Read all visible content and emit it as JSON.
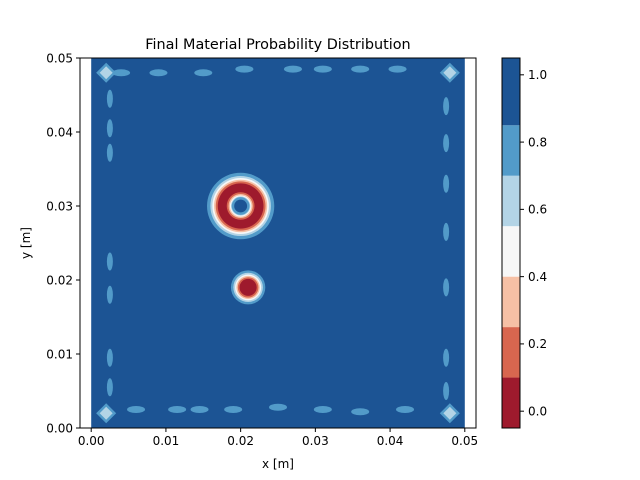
{
  "chart_data": {
    "type": "contourf",
    "title": "Final Material Probability Distribution",
    "xlabel": "x [m]",
    "ylabel": "y [m]",
    "xlim": [
      -0.0015,
      0.0515
    ],
    "ylim": [
      0.0,
      0.05
    ],
    "domain": {
      "x": [
        0.0,
        0.05
      ],
      "y": [
        0.0,
        0.05
      ]
    },
    "x_ticks": [
      0.0,
      0.01,
      0.02,
      0.03,
      0.04,
      0.05
    ],
    "x_tick_labels": [
      "0.00",
      "0.01",
      "0.02",
      "0.03",
      "0.04",
      "0.05"
    ],
    "y_ticks": [
      0.0,
      0.01,
      0.02,
      0.03,
      0.04,
      0.05
    ],
    "y_tick_labels": [
      "0.00",
      "0.01",
      "0.02",
      "0.03",
      "0.04",
      "0.05"
    ],
    "levels": [
      -0.05,
      0.1,
      0.25,
      0.4,
      0.55,
      0.7,
      0.85,
      1.05
    ],
    "level_colors": [
      "#9e1a2d",
      "#d8664f",
      "#f6c0a5",
      "#f7f7f7",
      "#b3d4e6",
      "#529bc9",
      "#1c5494"
    ],
    "colorbar_ticks": [
      0.0,
      0.2,
      0.4,
      0.6,
      0.8,
      1.0
    ],
    "colorbar_tick_labels": [
      "0.0",
      "0.2",
      "0.4",
      "0.6",
      "0.8",
      "1.0"
    ],
    "background_value": 1.0,
    "features": [
      {
        "name": "upper-ring",
        "shape": "ring",
        "center": [
          0.02,
          0.03
        ],
        "inner_radius": 0.0012,
        "outer_radius": 0.0045,
        "min_value": 0.0,
        "center_value": 1.0
      },
      {
        "name": "lower-blob",
        "shape": "disk",
        "center": [
          0.021,
          0.019
        ],
        "radius": 0.0023,
        "min_value": 0.0
      },
      {
        "name": "corner-bottom-left",
        "shape": "corner",
        "center": [
          0.002,
          0.002
        ],
        "min_value": 0.6
      },
      {
        "name": "corner-bottom-right",
        "shape": "corner",
        "center": [
          0.048,
          0.002
        ],
        "min_value": 0.6
      },
      {
        "name": "corner-top-left",
        "shape": "corner",
        "center": [
          0.002,
          0.048
        ],
        "min_value": 0.6
      },
      {
        "name": "corner-top-right",
        "shape": "corner",
        "center": [
          0.048,
          0.048
        ],
        "min_value": 0.6
      }
    ],
    "edge_patches": [
      [
        0.004,
        0.048
      ],
      [
        0.009,
        0.048
      ],
      [
        0.015,
        0.048
      ],
      [
        0.0205,
        0.0485
      ],
      [
        0.027,
        0.0485
      ],
      [
        0.031,
        0.0485
      ],
      [
        0.036,
        0.0485
      ],
      [
        0.041,
        0.0485
      ],
      [
        0.006,
        0.0025
      ],
      [
        0.0115,
        0.0025
      ],
      [
        0.0145,
        0.0025
      ],
      [
        0.019,
        0.0025
      ],
      [
        0.025,
        0.0028
      ],
      [
        0.031,
        0.0025
      ],
      [
        0.036,
        0.0022
      ],
      [
        0.042,
        0.0025
      ],
      [
        0.0025,
        0.0445
      ],
      [
        0.0025,
        0.0405
      ],
      [
        0.0025,
        0.0372
      ],
      [
        0.0025,
        0.0225
      ],
      [
        0.0025,
        0.018
      ],
      [
        0.0025,
        0.0095
      ],
      [
        0.0025,
        0.0055
      ],
      [
        0.0475,
        0.0435
      ],
      [
        0.0475,
        0.0385
      ],
      [
        0.0475,
        0.033
      ],
      [
        0.0475,
        0.0265
      ],
      [
        0.0475,
        0.019
      ],
      [
        0.0475,
        0.0095
      ],
      [
        0.0475,
        0.005
      ]
    ]
  }
}
